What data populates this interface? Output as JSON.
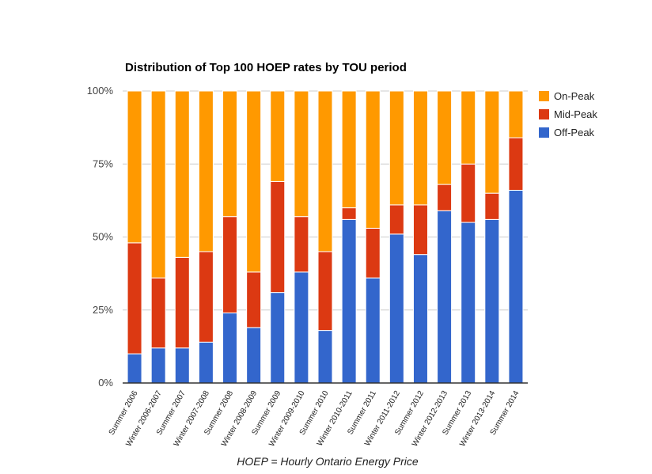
{
  "chart_data": {
    "type": "bar",
    "stacked": "percent",
    "title": "Distribution of Top 100 HOEP rates by TOU period",
    "xlabel": "",
    "ylabel": "",
    "footnote": "HOEP = Hourly Ontario Energy Price",
    "ylim": [
      0,
      100
    ],
    "yticks": [
      "0%",
      "25%",
      "50%",
      "75%",
      "100%"
    ],
    "grid": true,
    "legend_position": "right",
    "categories": [
      "Summer 2006",
      "Winter 2006-2007",
      "Summer 2007",
      "Winter 2007-2008",
      "Summer 2008",
      "Winter 2008-2009",
      "Summer 2009",
      "Winter 2009-2010",
      "Summer 2010",
      "Winter 2010-2011",
      "Summer 2011",
      "Winter 2011-2012",
      "Summer 2012",
      "Winter 2012-2013",
      "Summer 2013",
      "Winter 2013-2014",
      "Summer 2014"
    ],
    "series": [
      {
        "name": "Off-Peak",
        "color": "#3366cc",
        "values": [
          10,
          12,
          12,
          14,
          24,
          19,
          31,
          38,
          18,
          56,
          36,
          51,
          44,
          59,
          55,
          56,
          66
        ]
      },
      {
        "name": "Mid-Peak",
        "color": "#dc3912",
        "values": [
          38,
          24,
          31,
          31,
          33,
          19,
          38,
          19,
          27,
          4,
          17,
          10,
          17,
          9,
          20,
          9,
          18
        ]
      },
      {
        "name": "On-Peak",
        "color": "#ff9900",
        "values": [
          52,
          64,
          57,
          55,
          43,
          62,
          31,
          43,
          55,
          40,
          47,
          39,
          39,
          32,
          25,
          35,
          16
        ]
      }
    ],
    "legend": [
      {
        "name": "On-Peak",
        "color": "#ff9900"
      },
      {
        "name": "Mid-Peak",
        "color": "#dc3912"
      },
      {
        "name": "Off-Peak",
        "color": "#3366cc"
      }
    ]
  }
}
